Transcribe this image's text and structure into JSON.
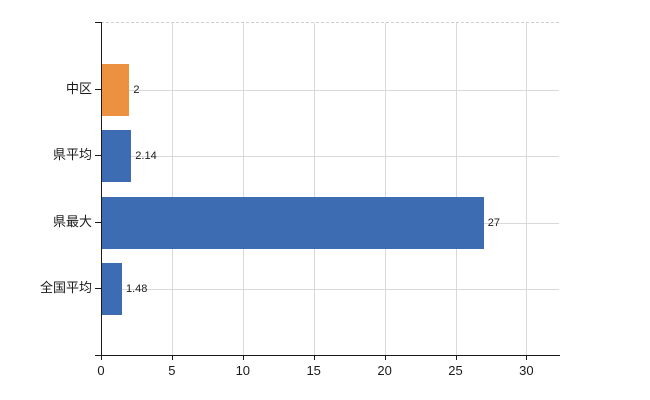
{
  "chart_data": {
    "type": "bar",
    "orientation": "horizontal",
    "title": "",
    "xlabel": "",
    "ylabel": "",
    "categories": [
      "中区",
      "県平均",
      "県最大",
      "全国平均"
    ],
    "values": [
      2,
      2.14,
      27,
      1.48
    ],
    "value_labels": [
      "2",
      "2.14",
      "27",
      "1.48"
    ],
    "bar_colors": [
      "#EB9140",
      "#3E6CB2",
      "#3E6CB2",
      "#3E6CB2"
    ],
    "x_ticks": [
      0,
      5,
      10,
      15,
      20,
      25,
      30
    ],
    "x_tick_labels": [
      "0",
      "5",
      "10",
      "15",
      "20",
      "25",
      "30"
    ],
    "xlim": [
      0,
      32.3
    ],
    "grid": true,
    "legend": null,
    "colors": {
      "grid": "#D9D9D9",
      "top_border": "#CFCFCF",
      "axis": "#1A1A1A",
      "text": "#1A1A1A",
      "background": "#FFFFFF"
    }
  }
}
